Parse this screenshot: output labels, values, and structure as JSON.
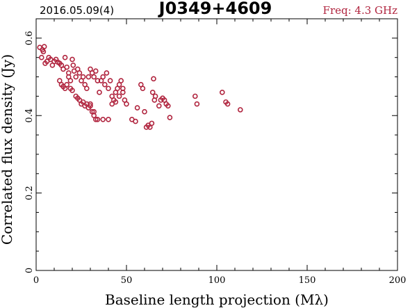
{
  "header": {
    "date": "2016.05.09(4)",
    "source": "J0349+4609",
    "frequency": "Freq: 4.3 GHz"
  },
  "colors": {
    "points": "#b0243e",
    "frequency_text": "#b0243e",
    "axes": "#000000"
  },
  "chart_data": {
    "type": "scatter",
    "xlabel": "Baseline length projection (Mλ)",
    "ylabel": "Correlated flux density (Jy)",
    "xlim": [
      0,
      200
    ],
    "ylim": [
      0,
      0.65
    ],
    "x_ticks": [
      "0",
      "50",
      "100",
      "150",
      "200"
    ],
    "y_ticks": [
      "0",
      "0.2",
      "0.4",
      "0.6"
    ],
    "grid": false,
    "points": [
      [
        2,
        0.576
      ],
      [
        3.5,
        0.57
      ],
      [
        4.5,
        0.578
      ],
      [
        3,
        0.55
      ],
      [
        4,
        0.565
      ],
      [
        5,
        0.535
      ],
      [
        6,
        0.54
      ],
      [
        7,
        0.55
      ],
      [
        8,
        0.545
      ],
      [
        9,
        0.53
      ],
      [
        10,
        0.54
      ],
      [
        11,
        0.545
      ],
      [
        12,
        0.538
      ],
      [
        13,
        0.535
      ],
      [
        14,
        0.53
      ],
      [
        15,
        0.52
      ],
      [
        16,
        0.55
      ],
      [
        17,
        0.525
      ],
      [
        18,
        0.51
      ],
      [
        19,
        0.49
      ],
      [
        20,
        0.545
      ],
      [
        20.5,
        0.53
      ],
      [
        21,
        0.515
      ],
      [
        22,
        0.5
      ],
      [
        13,
        0.49
      ],
      [
        14,
        0.48
      ],
      [
        15,
        0.475
      ],
      [
        16,
        0.47
      ],
      [
        17,
        0.48
      ],
      [
        18,
        0.5
      ],
      [
        19,
        0.47
      ],
      [
        20,
        0.465
      ],
      [
        22,
        0.45
      ],
      [
        23,
        0.445
      ],
      [
        24,
        0.44
      ],
      [
        25,
        0.43
      ],
      [
        26,
        0.435
      ],
      [
        27,
        0.425
      ],
      [
        28,
        0.43
      ],
      [
        29,
        0.42
      ],
      [
        30,
        0.425
      ],
      [
        31,
        0.41
      ],
      [
        32,
        0.4
      ],
      [
        33,
        0.39
      ],
      [
        23,
        0.52
      ],
      [
        24,
        0.51
      ],
      [
        25,
        0.49
      ],
      [
        26,
        0.5
      ],
      [
        27,
        0.48
      ],
      [
        28,
        0.47
      ],
      [
        29,
        0.5
      ],
      [
        30,
        0.52
      ],
      [
        31,
        0.51
      ],
      [
        32,
        0.5
      ],
      [
        33,
        0.515
      ],
      [
        34,
        0.49
      ],
      [
        35,
        0.46
      ],
      [
        36,
        0.49
      ],
      [
        37,
        0.5
      ],
      [
        38,
        0.48
      ],
      [
        39,
        0.51
      ],
      [
        40,
        0.47
      ],
      [
        41,
        0.49
      ],
      [
        42,
        0.45
      ],
      [
        43,
        0.44
      ],
      [
        44,
        0.46
      ],
      [
        45,
        0.47
      ],
      [
        46,
        0.48
      ],
      [
        47,
        0.49
      ],
      [
        48,
        0.47
      ],
      [
        49,
        0.44
      ],
      [
        50,
        0.43
      ],
      [
        30,
        0.43
      ],
      [
        32,
        0.41
      ],
      [
        34,
        0.39
      ],
      [
        37,
        0.39
      ],
      [
        40,
        0.39
      ],
      [
        42,
        0.43
      ],
      [
        44,
        0.435
      ],
      [
        46,
        0.45
      ],
      [
        48,
        0.46
      ],
      [
        53,
        0.39
      ],
      [
        55,
        0.385
      ],
      [
        56,
        0.42
      ],
      [
        58,
        0.48
      ],
      [
        59,
        0.47
      ],
      [
        60,
        0.41
      ],
      [
        61,
        0.37
      ],
      [
        62,
        0.375
      ],
      [
        63,
        0.37
      ],
      [
        64,
        0.38
      ],
      [
        64.5,
        0.46
      ],
      [
        65,
        0.495
      ],
      [
        65.5,
        0.44
      ],
      [
        66,
        0.45
      ],
      [
        68,
        0.425
      ],
      [
        69,
        0.44
      ],
      [
        70,
        0.445
      ],
      [
        71,
        0.44
      ],
      [
        72,
        0.43
      ],
      [
        73,
        0.425
      ],
      [
        74,
        0.395
      ],
      [
        88,
        0.45
      ],
      [
        89,
        0.43
      ],
      [
        103,
        0.46
      ],
      [
        105,
        0.435
      ],
      [
        106,
        0.43
      ],
      [
        113,
        0.415
      ]
    ]
  }
}
